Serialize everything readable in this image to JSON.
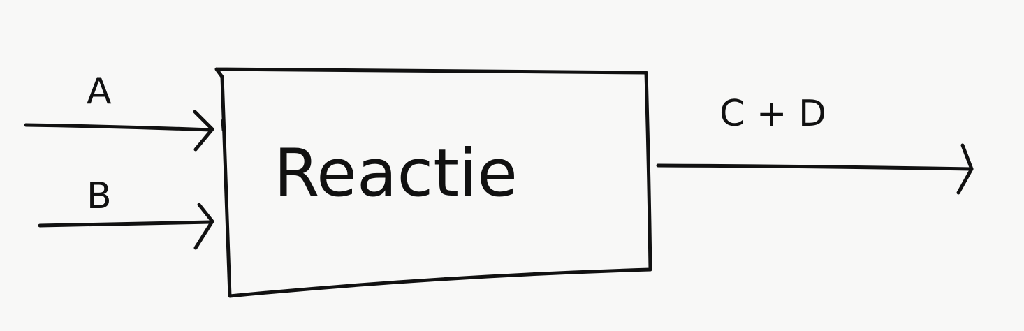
{
  "diagram": {
    "inputs": [
      {
        "label": "A"
      },
      {
        "label": "B"
      }
    ],
    "process": {
      "label": "Reactie"
    },
    "output": {
      "label": "C + D"
    }
  },
  "colors": {
    "background": "#f8f8f7",
    "ink": "#111111"
  }
}
